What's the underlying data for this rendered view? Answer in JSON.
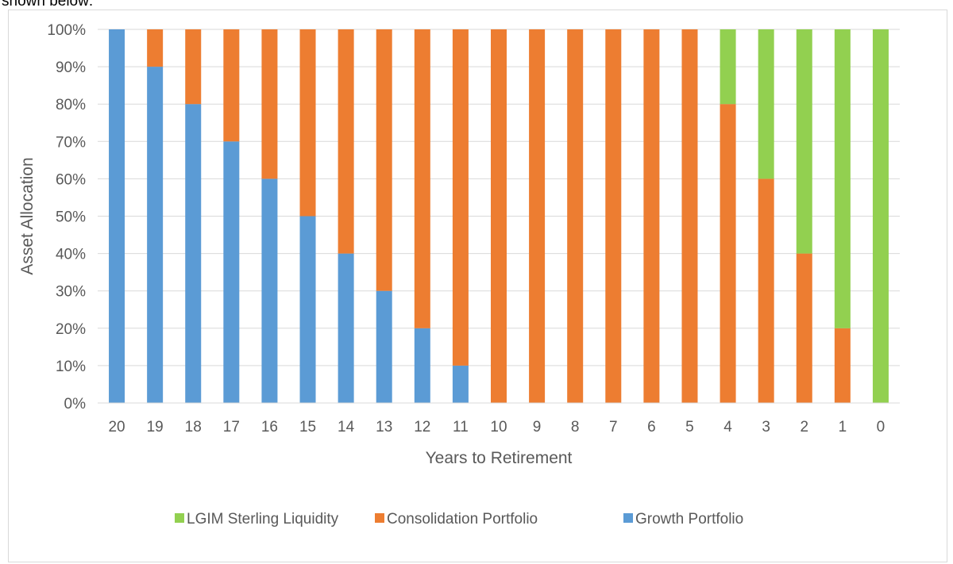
{
  "intro_text": "shown below:",
  "chart_data": {
    "type": "bar",
    "stacked": true,
    "categories": [
      "20",
      "19",
      "18",
      "17",
      "16",
      "15",
      "14",
      "13",
      "12",
      "11",
      "10",
      "9",
      "8",
      "7",
      "6",
      "5",
      "4",
      "3",
      "2",
      "1",
      "0"
    ],
    "series": [
      {
        "name": "Growth Portfolio",
        "color": "#5b9bd5",
        "values": [
          100,
          90,
          80,
          70,
          60,
          50,
          40,
          30,
          20,
          10,
          0,
          0,
          0,
          0,
          0,
          0,
          0,
          0,
          0,
          0,
          0
        ]
      },
      {
        "name": "Consolidation Portfolio",
        "color": "#ed7d31",
        "values": [
          0,
          10,
          20,
          30,
          40,
          50,
          60,
          70,
          80,
          90,
          100,
          100,
          100,
          100,
          100,
          100,
          80,
          60,
          40,
          20,
          0
        ]
      },
      {
        "name": "LGIM Sterling Liquidity",
        "color": "#92d050",
        "values": [
          0,
          0,
          0,
          0,
          0,
          0,
          0,
          0,
          0,
          0,
          0,
          0,
          0,
          0,
          0,
          0,
          20,
          40,
          60,
          80,
          100
        ]
      }
    ],
    "legend_order": [
      "LGIM Sterling Liquidity",
      "Consolidation Portfolio",
      "Growth Portfolio"
    ],
    "xlabel": "Years to Retirement",
    "ylabel": "Asset Allocation",
    "ylim": [
      0,
      100
    ],
    "yticks": [
      "0%",
      "10%",
      "20%",
      "30%",
      "40%",
      "50%",
      "60%",
      "70%",
      "80%",
      "90%",
      "100%"
    ],
    "grid": true,
    "legend_position": "bottom"
  }
}
